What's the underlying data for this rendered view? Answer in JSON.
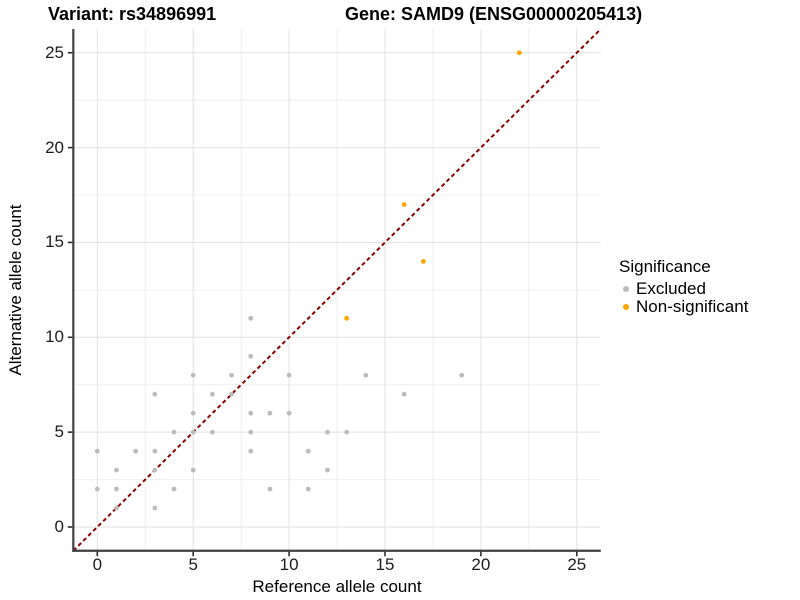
{
  "header": {
    "title_left": "Variant: rs34896991",
    "title_right": "Gene: SAMD9 (ENSG00000205413)"
  },
  "chart_data": {
    "type": "scatter",
    "xlabel": "Reference allele count",
    "ylabel": "Alternative allele count",
    "xlim": [
      -1.25,
      26.25
    ],
    "ylim": [
      -1.25,
      26.25
    ],
    "x_ticks": [
      0,
      5,
      10,
      15,
      20,
      25
    ],
    "y_ticks": [
      0,
      5,
      10,
      15,
      20,
      25
    ],
    "x_tick_labels": [
      "0",
      "5",
      "10",
      "15",
      "20",
      "25"
    ],
    "y_tick_labels": [
      "0",
      "5",
      "10",
      "15",
      "20",
      "25"
    ],
    "grid": true,
    "identity_line": {
      "equation": "y = x",
      "style": "dashed",
      "color": "#8B0000"
    },
    "legend": {
      "title": "Significance",
      "position": "right"
    },
    "series": [
      {
        "name": "Excluded",
        "color": "#BCBCBC",
        "points": [
          [
            0,
            2
          ],
          [
            0,
            4
          ],
          [
            1,
            1
          ],
          [
            1,
            2
          ],
          [
            1,
            3
          ],
          [
            2,
            4
          ],
          [
            3,
            1
          ],
          [
            3,
            3
          ],
          [
            3,
            4
          ],
          [
            3,
            7
          ],
          [
            4,
            2
          ],
          [
            4,
            5
          ],
          [
            5,
            3
          ],
          [
            5,
            5
          ],
          [
            5,
            6
          ],
          [
            5,
            8
          ],
          [
            6,
            5
          ],
          [
            6,
            7
          ],
          [
            7,
            7
          ],
          [
            7,
            8
          ],
          [
            8,
            4
          ],
          [
            8,
            5
          ],
          [
            8,
            6
          ],
          [
            8,
            9
          ],
          [
            8,
            11
          ],
          [
            9,
            2
          ],
          [
            9,
            6
          ],
          [
            10,
            6
          ],
          [
            10,
            8
          ],
          [
            11,
            2
          ],
          [
            11,
            4
          ],
          [
            12,
            3
          ],
          [
            12,
            5
          ],
          [
            13,
            5
          ],
          [
            14,
            8
          ],
          [
            16,
            7
          ],
          [
            19,
            8
          ]
        ]
      },
      {
        "name": "Non-significant",
        "color": "#FFA500",
        "points": [
          [
            13,
            11
          ],
          [
            16,
            17
          ],
          [
            17,
            14
          ],
          [
            22,
            25
          ]
        ]
      }
    ]
  }
}
